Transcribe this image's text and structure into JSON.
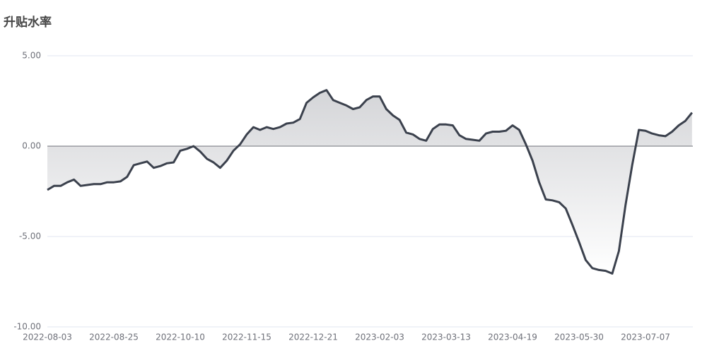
{
  "chart_data": {
    "type": "area",
    "title": "升贴水率",
    "categories": [
      "2022-08-03",
      null,
      null,
      null,
      null,
      null,
      null,
      null,
      null,
      null,
      "2022-08-25",
      null,
      null,
      null,
      null,
      null,
      null,
      null,
      null,
      null,
      "2022-10-10",
      null,
      null,
      null,
      null,
      null,
      null,
      null,
      null,
      null,
      "2022-11-15",
      null,
      null,
      null,
      null,
      null,
      null,
      null,
      null,
      null,
      "2022-12-21",
      null,
      null,
      null,
      null,
      null,
      null,
      null,
      null,
      null,
      "2023-02-03",
      null,
      null,
      null,
      null,
      null,
      null,
      null,
      null,
      null,
      "2023-03-13",
      null,
      null,
      null,
      null,
      null,
      null,
      null,
      null,
      null,
      "2023-04-19",
      null,
      null,
      null,
      null,
      null,
      null,
      null,
      null,
      null,
      "2023-05-30",
      null,
      null,
      null,
      null,
      null,
      null,
      null,
      null,
      null,
      "2023-07-07",
      null,
      null,
      null,
      null,
      null,
      null,
      null
    ],
    "values": [
      -2.42,
      -2.2,
      -2.2,
      -2.0,
      -1.85,
      -2.2,
      -2.15,
      -2.1,
      -2.1,
      -2.0,
      -2.0,
      -1.95,
      -1.7,
      -1.05,
      -0.95,
      -0.85,
      -1.2,
      -1.1,
      -0.95,
      -0.9,
      -0.25,
      -0.15,
      0.0,
      -0.3,
      -0.7,
      -0.9,
      -1.2,
      -0.8,
      -0.25,
      0.1,
      0.65,
      1.05,
      0.9,
      1.05,
      0.95,
      1.05,
      1.25,
      1.3,
      1.5,
      2.4,
      2.7,
      2.95,
      3.1,
      2.55,
      2.4,
      2.25,
      2.05,
      2.15,
      2.55,
      2.75,
      2.75,
      2.05,
      1.7,
      1.45,
      0.75,
      0.65,
      0.4,
      0.3,
      0.95,
      1.2,
      1.2,
      1.15,
      0.6,
      0.4,
      0.35,
      0.3,
      0.7,
      0.8,
      0.8,
      0.85,
      1.15,
      0.9,
      0.1,
      -0.8,
      -2.0,
      -2.95,
      -3.0,
      -3.1,
      -3.45,
      -4.35,
      -5.3,
      -6.3,
      -6.75,
      -6.85,
      -6.9,
      -7.05,
      -5.8,
      -3.25,
      -1.05,
      0.9,
      0.85,
      0.7,
      0.6,
      0.55,
      0.8,
      1.15,
      1.4,
      1.85
    ],
    "color": "#3b414d",
    "ylim": [
      -10,
      5
    ],
    "yticks": [
      {
        "value": -10,
        "label": "-10.00"
      },
      {
        "value": -5,
        "label": "-5.00"
      },
      {
        "value": 0,
        "label": "0.00"
      },
      {
        "value": 5,
        "label": "5.00"
      }
    ],
    "grid": true
  }
}
